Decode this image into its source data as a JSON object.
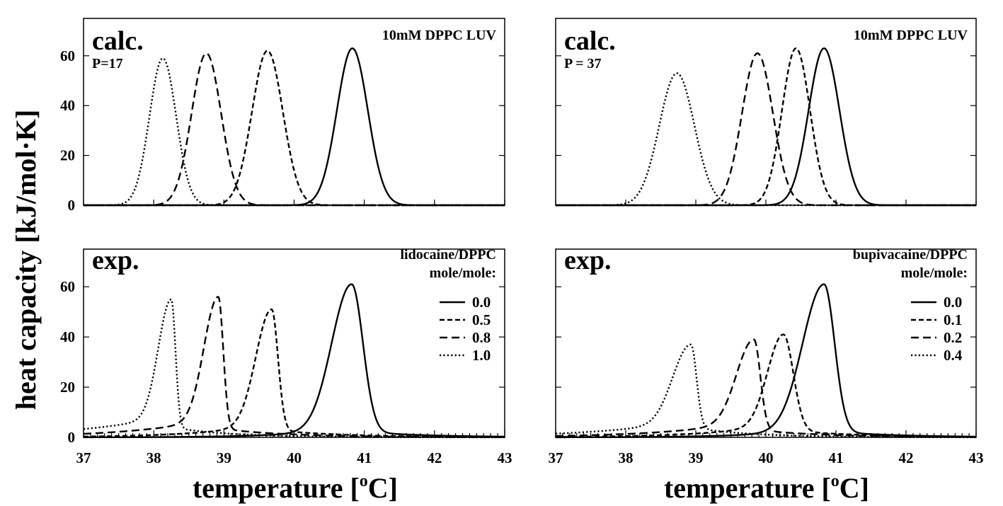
{
  "figure": {
    "ylabel": "heat capacity [kJ/mol·K]",
    "xlabel_main": "temperature [",
    "xlabel_sup": "o",
    "xlabel_end": "C]"
  },
  "chart_data": [
    {
      "id": "calc-left",
      "type": "line",
      "panel_label": "calc.",
      "subtitle": "P=17",
      "note": "10mM DPPC LUV",
      "xlim": [
        37,
        43
      ],
      "ylim": [
        0,
        75
      ],
      "xticks": [
        37,
        38,
        39,
        40,
        41,
        42,
        43
      ],
      "yticks": [
        0,
        20,
        40,
        60
      ],
      "series": [
        {
          "name": "0.0",
          "style": "solid",
          "kind": "gauss",
          "peak_x": 40.83,
          "peak_y": 63,
          "width": 0.22
        },
        {
          "name": "0.5",
          "style": "short-dash",
          "kind": "gauss",
          "peak_x": 39.62,
          "peak_y": 62,
          "width": 0.22
        },
        {
          "name": "0.8",
          "style": "long-dash",
          "kind": "gauss",
          "peak_x": 38.75,
          "peak_y": 61,
          "width": 0.21
        },
        {
          "name": "1.0",
          "style": "dotted",
          "kind": "gauss",
          "peak_x": 38.13,
          "peak_y": 59,
          "width": 0.19
        }
      ]
    },
    {
      "id": "calc-right",
      "type": "line",
      "panel_label": "calc.",
      "subtitle": "P = 37",
      "note": "10mM DPPC LUV",
      "xlim": [
        37,
        43
      ],
      "ylim": [
        0,
        75
      ],
      "xticks": [
        37,
        38,
        39,
        40,
        41,
        42,
        43
      ],
      "yticks": [
        0,
        20,
        40,
        60
      ],
      "series": [
        {
          "name": "0.0",
          "style": "solid",
          "kind": "gauss",
          "peak_x": 40.83,
          "peak_y": 63,
          "width": 0.22
        },
        {
          "name": "0.1",
          "style": "short-dash",
          "kind": "gauss",
          "peak_x": 40.43,
          "peak_y": 63,
          "width": 0.2
        },
        {
          "name": "0.2",
          "style": "long-dash",
          "kind": "gauss",
          "peak_x": 39.88,
          "peak_y": 61,
          "width": 0.22
        },
        {
          "name": "0.4",
          "style": "dotted",
          "kind": "gauss",
          "peak_x": 38.73,
          "peak_y": 53,
          "width": 0.25
        }
      ]
    },
    {
      "id": "exp-left",
      "type": "line",
      "panel_label": "exp.",
      "note_line1": "lidocaine/DPPC",
      "note_line2": "mole/mole:",
      "xlim": [
        37,
        43
      ],
      "ylim": [
        0,
        75
      ],
      "xticks": [
        37,
        38,
        39,
        40,
        41,
        42,
        43
      ],
      "yticks": [
        0,
        20,
        40,
        60
      ],
      "legend": [
        "0.0",
        "0.5",
        "0.8",
        "1.0"
      ],
      "series": [
        {
          "name": "0.0",
          "style": "solid",
          "kind": "asym",
          "peak_x": 40.82,
          "peak_y": 61,
          "left_width": 0.28,
          "right_width": 0.16,
          "left_tail": 4.5,
          "left_decay": 1.3,
          "right_tail": 2.5,
          "right_decay": 1.0
        },
        {
          "name": "0.5",
          "style": "short-dash",
          "kind": "asym",
          "peak_x": 39.68,
          "peak_y": 51,
          "left_width": 0.22,
          "right_width": 0.09,
          "left_tail": 6,
          "left_decay": 1.1,
          "right_tail": 3,
          "right_decay": 1.0
        },
        {
          "name": "0.8",
          "style": "long-dash",
          "kind": "asym",
          "peak_x": 38.92,
          "peak_y": 56,
          "left_width": 0.2,
          "right_width": 0.07,
          "left_tail": 8,
          "left_decay": 0.9,
          "right_tail": 3.5,
          "right_decay": 1.0
        },
        {
          "name": "1.0",
          "style": "dotted",
          "kind": "asym",
          "peak_x": 38.25,
          "peak_y": 55,
          "left_width": 0.18,
          "right_width": 0.06,
          "left_tail": 9,
          "left_decay": 0.8,
          "right_tail": 4,
          "right_decay": 1.2
        }
      ]
    },
    {
      "id": "exp-right",
      "type": "line",
      "panel_label": "exp.",
      "note_line1": "bupivacaine/DPPC",
      "note_line2": "mole/mole:",
      "xlim": [
        37,
        43
      ],
      "ylim": [
        0,
        75
      ],
      "xticks": [
        37,
        38,
        39,
        40,
        41,
        42,
        43
      ],
      "yticks": [
        0,
        20,
        40,
        60
      ],
      "legend": [
        "0.0",
        "0.1",
        "0.2",
        "0.4"
      ],
      "series": [
        {
          "name": "0.0",
          "style": "solid",
          "kind": "asym",
          "peak_x": 40.83,
          "peak_y": 61,
          "left_width": 0.3,
          "right_width": 0.15,
          "left_tail": 4.5,
          "left_decay": 1.3,
          "right_tail": 2.5,
          "right_decay": 1.0
        },
        {
          "name": "0.1",
          "style": "short-dash",
          "kind": "asym",
          "peak_x": 40.25,
          "peak_y": 41,
          "left_width": 0.22,
          "right_width": 0.14,
          "left_tail": 6,
          "left_decay": 1.1,
          "right_tail": 3,
          "right_decay": 1.0
        },
        {
          "name": "0.2",
          "style": "long-dash",
          "kind": "asym",
          "peak_x": 39.83,
          "peak_y": 39,
          "left_width": 0.24,
          "right_width": 0.09,
          "left_tail": 7,
          "left_decay": 0.9,
          "right_tail": 3,
          "right_decay": 1.0
        },
        {
          "name": "0.4",
          "style": "dotted",
          "kind": "asym",
          "peak_x": 38.93,
          "peak_y": 37,
          "left_width": 0.25,
          "right_width": 0.08,
          "left_tail": 7,
          "left_decay": 0.8,
          "right_tail": 4,
          "right_decay": 1.2
        }
      ]
    }
  ]
}
